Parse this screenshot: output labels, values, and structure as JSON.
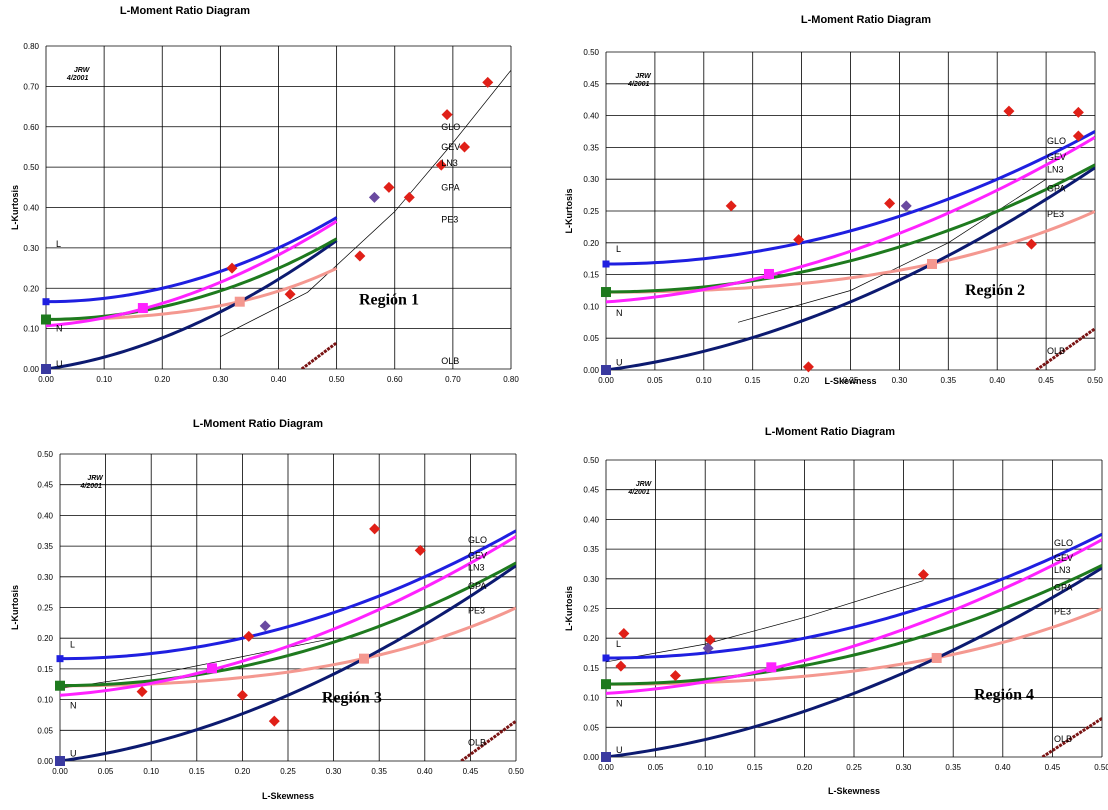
{
  "colors": {
    "L": "#1f1fe0",
    "GEV": "#ff22ff",
    "LN3": "#1e7a1e",
    "GPA": "#0c1a70",
    "PE3": "#f49890",
    "OLB": "#7a1414",
    "obs": "#e02018",
    "mean": "#6a4aa0",
    "trend": "#000000",
    "grid": "#000000"
  },
  "stamp": [
    "JRW",
    "4/2001"
  ],
  "curve_labels": [
    "GLO",
    "GEV",
    "LN3",
    "GPA",
    "PE3",
    "OLB"
  ],
  "point_labels": [
    "L",
    "N",
    "U"
  ],
  "chart_data": [
    {
      "type": "scatter",
      "title": "L-Moment Ratio Diagram",
      "xlabel": "",
      "ylabel": "L-Kurtosis",
      "region_label": "Región 1",
      "xlim": [
        0,
        0.8
      ],
      "ylim": [
        0,
        0.8
      ],
      "x_ticks": [
        "0.00",
        "0.10",
        "0.20",
        "0.30",
        "0.40",
        "0.50",
        "0.60",
        "0.70",
        "0.80"
      ],
      "y_ticks": [
        "0.00",
        "0.10",
        "0.20",
        "0.30",
        "0.40",
        "0.50",
        "0.60",
        "0.70",
        "0.80"
      ],
      "observations": [
        [
          0.32,
          0.25
        ],
        [
          0.42,
          0.185
        ],
        [
          0.54,
          0.28
        ],
        [
          0.59,
          0.45
        ],
        [
          0.625,
          0.425
        ],
        [
          0.68,
          0.505
        ],
        [
          0.69,
          0.63
        ],
        [
          0.72,
          0.55
        ],
        [
          0.76,
          0.71
        ]
      ],
      "regional_mean": [
        0.565,
        0.425
      ],
      "trend_line": [
        [
          0.3,
          0.08
        ],
        [
          0.45,
          0.19
        ],
        [
          0.6,
          0.39
        ],
        [
          0.7,
          0.56
        ],
        [
          0.8,
          0.74
        ]
      ]
    },
    {
      "type": "scatter",
      "title": "L-Moment Ratio Diagram",
      "xlabel": "L-Skewness",
      "ylabel": "L-Kurtosis",
      "region_label": "Región 2",
      "xlim": [
        0,
        0.5
      ],
      "ylim": [
        0,
        0.5
      ],
      "x_ticks": [
        "0.00",
        "0.05",
        "0.10",
        "0.15",
        "0.20",
        "0.25",
        "0.30",
        "0.35",
        "0.40",
        "0.45",
        "0.50"
      ],
      "y_ticks": [
        "0.00",
        "0.05",
        "0.10",
        "0.15",
        "0.20",
        "0.25",
        "0.30",
        "0.35",
        "0.40",
        "0.45",
        "0.50"
      ],
      "observations": [
        [
          0.128,
          0.258
        ],
        [
          0.197,
          0.205
        ],
        [
          0.207,
          0.005
        ],
        [
          0.29,
          0.262
        ],
        [
          0.412,
          0.407
        ],
        [
          0.435,
          0.198
        ],
        [
          0.483,
          0.405
        ],
        [
          0.483,
          0.368
        ]
      ],
      "regional_mean": [
        0.307,
        0.258
      ],
      "trend_line": [
        [
          0.135,
          0.075
        ],
        [
          0.25,
          0.125
        ],
        [
          0.35,
          0.2
        ],
        [
          0.45,
          0.3
        ]
      ]
    },
    {
      "type": "scatter",
      "title": "L-Moment Ratio Diagram",
      "xlabel": "L-Skewness",
      "ylabel": "L-Kurtosis",
      "region_label": "Región 3",
      "xlim": [
        0,
        0.5
      ],
      "ylim": [
        0,
        0.5
      ],
      "x_ticks": [
        "0.00",
        "0.05",
        "0.10",
        "0.15",
        "0.20",
        "0.25",
        "0.30",
        "0.35",
        "0.40",
        "0.45",
        "0.50"
      ],
      "y_ticks": [
        "0.00",
        "0.05",
        "0.10",
        "0.15",
        "0.20",
        "0.25",
        "0.30",
        "0.35",
        "0.40",
        "0.45",
        "0.50"
      ],
      "observations": [
        [
          0.09,
          0.113
        ],
        [
          0.2,
          0.107
        ],
        [
          0.207,
          0.203
        ],
        [
          0.235,
          0.065
        ],
        [
          0.345,
          0.378
        ],
        [
          0.395,
          0.343
        ]
      ],
      "regional_mean": [
        0.225,
        0.22
      ],
      "trend_line": [
        [
          0.0,
          0.118
        ],
        [
          0.1,
          0.14
        ],
        [
          0.2,
          0.17
        ],
        [
          0.3,
          0.2
        ]
      ]
    },
    {
      "type": "scatter",
      "title": "L-Moment Ratio Diagram",
      "xlabel": "L-Skewness",
      "ylabel": "L-Kurtosis",
      "region_label": "Región 4",
      "xlim": [
        0,
        0.5
      ],
      "ylim": [
        0,
        0.5
      ],
      "x_ticks": [
        "0.00",
        "0.05",
        "0.10",
        "0.15",
        "0.20",
        "0.25",
        "0.30",
        "0.35",
        "0.40",
        "0.45",
        "0.50"
      ],
      "y_ticks": [
        "0.00",
        "0.05",
        "0.10",
        "0.15",
        "0.20",
        "0.25",
        "0.30",
        "0.35",
        "0.40",
        "0.45",
        "0.50"
      ],
      "observations": [
        [
          0.015,
          0.153
        ],
        [
          0.018,
          0.208
        ],
        [
          0.07,
          0.137
        ],
        [
          0.105,
          0.197
        ],
        [
          0.32,
          0.307
        ]
      ],
      "regional_mean": [
        0.103,
        0.183
      ],
      "trend_line": [
        [
          0.0,
          0.16
        ],
        [
          0.1,
          0.19
        ],
        [
          0.2,
          0.235
        ],
        [
          0.32,
          0.297
        ]
      ]
    }
  ]
}
